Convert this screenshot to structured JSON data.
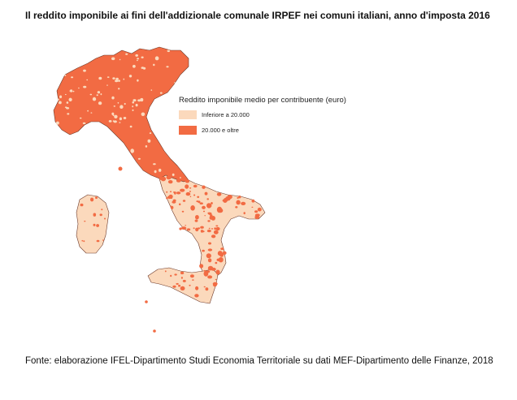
{
  "title": "Il reddito imponibile ai fini dell'addizionale comunale IRPEF nei comuni italiani, anno d'imposta 2016",
  "legend": {
    "title": "Reddito imponibile medio per contribuente (euro)",
    "items": [
      {
        "label": "Inferiore a 20.000",
        "color": "#fbd9bc"
      },
      {
        "label": "20.000 e oltre",
        "color": "#f26b43"
      }
    ]
  },
  "colors": {
    "low": "#fbd9bc",
    "high": "#f26b43",
    "border": "#6e3a2a"
  },
  "source": "Fonte: elaborazione IFEL-Dipartimento Studi Economia Territoriale su dati MEF-Dipartimento delle Finanze, 2018"
}
